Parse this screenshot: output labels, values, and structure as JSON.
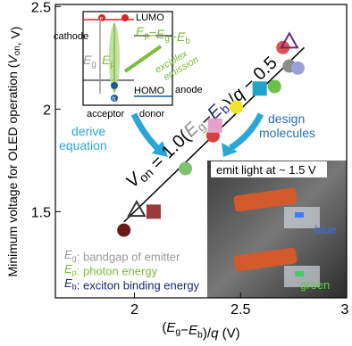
{
  "chart_data": {
    "type": "scatter",
    "x_label": [
      "(",
      {
        "i": "E",
        "sub": "g"
      },
      "−",
      {
        "i": "E",
        "sub": "b"
      },
      ")/",
      {
        "i": "q"
      },
      " (V)"
    ],
    "y_label": [
      "Minimum voltage for OLED operation (",
      {
        "i": "V",
        "sub": "on"
      },
      ", V)"
    ],
    "xlim": [
      1.627,
      3.0
    ],
    "ylim": [
      1.08,
      2.51
    ],
    "xticks": [
      2,
      2.5,
      3
    ],
    "yticks": [
      1.5,
      2,
      2.5
    ],
    "x": [
      1.95,
      2.01,
      2.09,
      2.24,
      2.37,
      2.38,
      2.48,
      2.59,
      2.66,
      2.7,
      2.73,
      2.77,
      2.73
    ],
    "values": [
      1.41,
      1.51,
      1.5,
      1.71,
      1.87,
      1.92,
      2.01,
      2.1,
      2.11,
      2.3,
      2.21,
      2.2,
      2.33
    ],
    "colors": [
      "#6b1a1a",
      "#333333",
      "#9b3a3a",
      "#7dc36b",
      "#d84040",
      "#e8a0c8",
      "#f1e32a",
      "#1fa3c9",
      "#6cc04a",
      "#e05050",
      "#8c8c8c",
      "#9aa0d8",
      "#6b2a6b"
    ],
    "markers": [
      "circle",
      "triangle-open",
      "square",
      "circle",
      "circle",
      "square",
      "circle",
      "square",
      "circle",
      "circle",
      "circle",
      "circle",
      "triangle-open"
    ],
    "fit": {
      "type": "line",
      "x": [
        1.95,
        2.8
      ],
      "values": [
        1.45,
        2.3
      ],
      "color": "#000000",
      "label": [
        {
          "i": "V",
          "sub": "on"
        },
        " = 1.0(",
        {
          "i": "E",
          "sub": "g",
          "color": "#8a8a8a"
        },
        "−",
        {
          "i": "E",
          "sub": "b",
          "color": "#1c2a6e"
        },
        ")/",
        {
          "i": "q"
        },
        " − 0.5"
      ]
    },
    "notes": [
      {
        "color": "#999999",
        "parts": [
          {
            "i": "E",
            "sub": "g"
          },
          ": bandgap of emitter"
        ]
      },
      {
        "color": "#7dbb3a",
        "parts": [
          {
            "i": "E",
            "sub": "p"
          },
          ": photon energy"
        ]
      },
      {
        "color": "#1c2a6e",
        "parts": [
          {
            "i": "E",
            "sub": "b"
          },
          ": exciton binding energy"
        ]
      }
    ]
  },
  "inset": {
    "lumo": "LUMO",
    "homo": "HOMO",
    "cathode": "cathode",
    "anode": "anode",
    "acceptor": "acceptor",
    "donor": "donor",
    "emission": [
      "exciplex",
      "emission"
    ],
    "e": "e",
    "h": "h",
    "eg": [
      {
        "i": "E",
        "sub": "g"
      }
    ],
    "ep": [
      {
        "i": "E",
        "sub": "p"
      }
    ],
    "relation": [
      {
        "i": "E",
        "sub": "p"
      },
      "=",
      {
        "i": "E",
        "sub": "g"
      },
      "−",
      {
        "i": "E",
        "sub": "b"
      }
    ]
  },
  "arrows": {
    "derive": [
      "derive",
      "equation"
    ],
    "design": [
      "design",
      "molecules"
    ]
  },
  "photo": {
    "caption": "emit light at ~ 1.5 V",
    "blue": "blue",
    "green": "green"
  }
}
